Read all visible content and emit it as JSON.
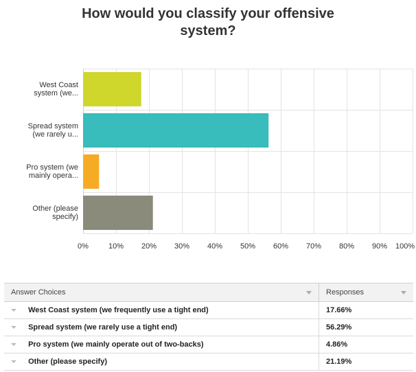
{
  "title_lines": [
    "How would you classify your offensive",
    "system?"
  ],
  "chart_data": {
    "type": "bar",
    "orientation": "horizontal",
    "title": "How would you classify your offensive system?",
    "categories": [
      [
        "West Coast",
        "system (we..."
      ],
      [
        "Spread system",
        "(we rarely u..."
      ],
      [
        "Pro system (we",
        "mainly opera..."
      ],
      [
        "Other (please",
        "specify)"
      ]
    ],
    "values": [
      17.66,
      56.29,
      4.86,
      21.19
    ],
    "colors": [
      "#cfd62c",
      "#38bcbc",
      "#f6ab24",
      "#8b8b7b"
    ],
    "xlim": [
      0,
      100
    ],
    "xticks": [
      "0%",
      "10%",
      "20%",
      "30%",
      "40%",
      "50%",
      "60%",
      "70%",
      "80%",
      "90%",
      "100%"
    ],
    "grid": true
  },
  "table": {
    "headers": [
      "Answer Choices",
      "Responses"
    ],
    "rows": [
      {
        "choice": "West Coast system (we frequently use a tight end)",
        "response": "17.66%"
      },
      {
        "choice": "Spread system (we rarely use a tight end)",
        "response": "56.29%"
      },
      {
        "choice": "Pro system (we mainly operate out of two-backs)",
        "response": "4.86%"
      },
      {
        "choice": "Other (please specify)",
        "response": "21.19%"
      }
    ]
  }
}
